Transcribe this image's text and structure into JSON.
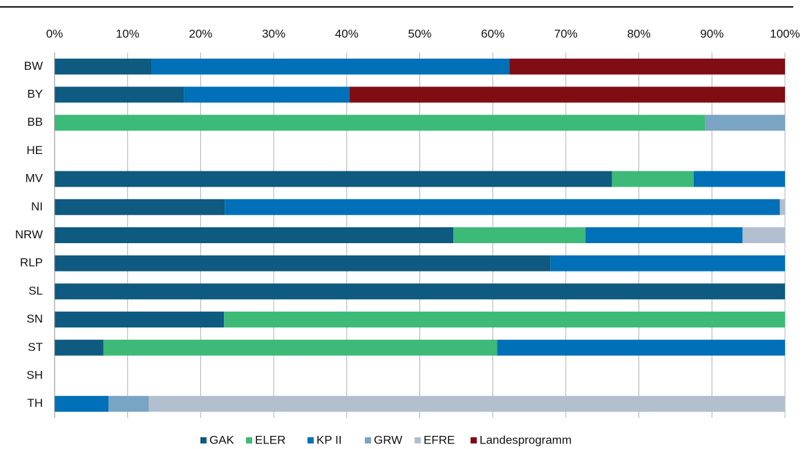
{
  "chart_data": {
    "type": "stacked-bar-horizontal",
    "categories": [
      "BW",
      "BY",
      "BB",
      "HE",
      "MV",
      "NI",
      "NRW",
      "RLP",
      "SL",
      "SN",
      "ST",
      "SH",
      "TH"
    ],
    "series": [
      {
        "name": "GAK",
        "color": "#0e5a80",
        "values": [
          13.3,
          17.7,
          0,
          0,
          76.3,
          23.3,
          54.6,
          67.9,
          100,
          23.2,
          6.7,
          0,
          0
        ]
      },
      {
        "name": "ELER",
        "color": "#3dba78",
        "values": [
          0,
          0,
          89.1,
          0,
          11.2,
          0,
          18.1,
          0,
          0,
          76.8,
          53.9,
          0,
          0
        ]
      },
      {
        "name": "KP II",
        "color": "#0070b8",
        "values": [
          49.0,
          22.7,
          0,
          0,
          12.5,
          76.0,
          21.5,
          32.1,
          0,
          0,
          39.4,
          0,
          7.4
        ]
      },
      {
        "name": "GRW",
        "color": "#79a4c4",
        "values": [
          0,
          0,
          10.9,
          0,
          0,
          0,
          0,
          0,
          0,
          0,
          0,
          0,
          5.5
        ]
      },
      {
        "name": "EFRE",
        "color": "#b2bfcf",
        "values": [
          0,
          0,
          0,
          0,
          0,
          0.7,
          5.8,
          0,
          0,
          0,
          0,
          0,
          87.1
        ]
      },
      {
        "name": "Landesprogramm",
        "color": "#800d14",
        "values": [
          37.7,
          59.6,
          0,
          0,
          0,
          0,
          0,
          0,
          0,
          0,
          0,
          0,
          0
        ]
      }
    ],
    "xlim": [
      0,
      100
    ],
    "xticks": [
      {
        "value": 0,
        "label": "0%"
      },
      {
        "value": 10,
        "label": "10%"
      },
      {
        "value": 20,
        "label": "20%"
      },
      {
        "value": 30,
        "label": "30%"
      },
      {
        "value": 40,
        "label": "40%"
      },
      {
        "value": 50,
        "label": "50%"
      },
      {
        "value": 60,
        "label": "60%"
      },
      {
        "value": 70,
        "label": "70%"
      },
      {
        "value": 80,
        "label": "80%"
      },
      {
        "value": 90,
        "label": "90%"
      },
      {
        "value": 100,
        "label": "100%"
      }
    ],
    "grid": true,
    "legend": "bottom"
  }
}
